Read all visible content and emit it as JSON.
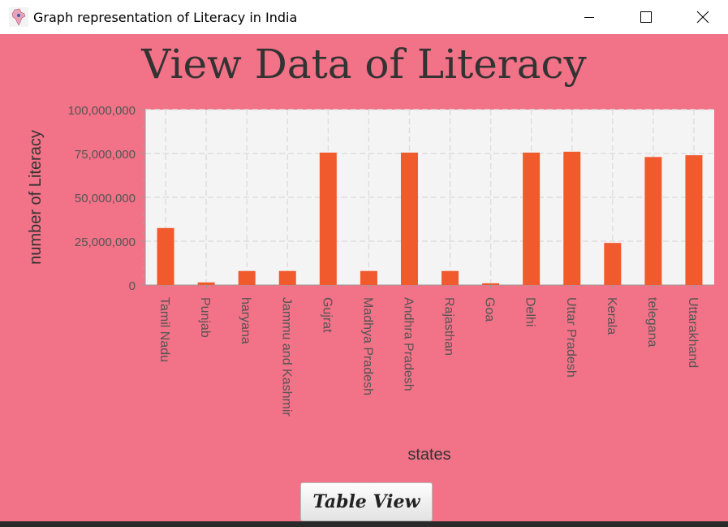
{
  "window": {
    "title": "Graph representation of Literacy in India",
    "icon": "india-map-icon",
    "controls": [
      "minimize-icon",
      "maximize-icon",
      "close-icon"
    ]
  },
  "heading": "View Data of Literacy",
  "table_view_button": "Table View",
  "colors": {
    "background": "#f27287",
    "plot_background": "#f4f4f4",
    "bar": "#f05a2c"
  },
  "chart_data": {
    "type": "bar",
    "xlabel": "states",
    "ylabel": "number of Literacy",
    "ylim": [
      0,
      100000000
    ],
    "y_ticks": [
      "0",
      "25,000,000",
      "50,000,000",
      "75,000,000",
      "100,000,000"
    ],
    "y_tick_values": [
      0,
      25000000,
      50000000,
      75000000,
      100000000
    ],
    "grid": true,
    "categories": [
      "Tamil Nadu",
      "Punjab",
      "haryana",
      "Jammu and Kashmir",
      "Gujrat",
      "Madhya Pradesh",
      "Andhra Pradesh",
      "Rajasthan",
      "Goa",
      "Delhi",
      "Uttar Pradesh",
      "Kerala",
      "telegana",
      "Uttarakhand"
    ],
    "values": [
      32500000,
      1500000,
      8000000,
      8000000,
      75500000,
      8000000,
      75500000,
      8000000,
      1000000,
      75500000,
      76000000,
      24000000,
      73000000,
      74000000
    ]
  }
}
